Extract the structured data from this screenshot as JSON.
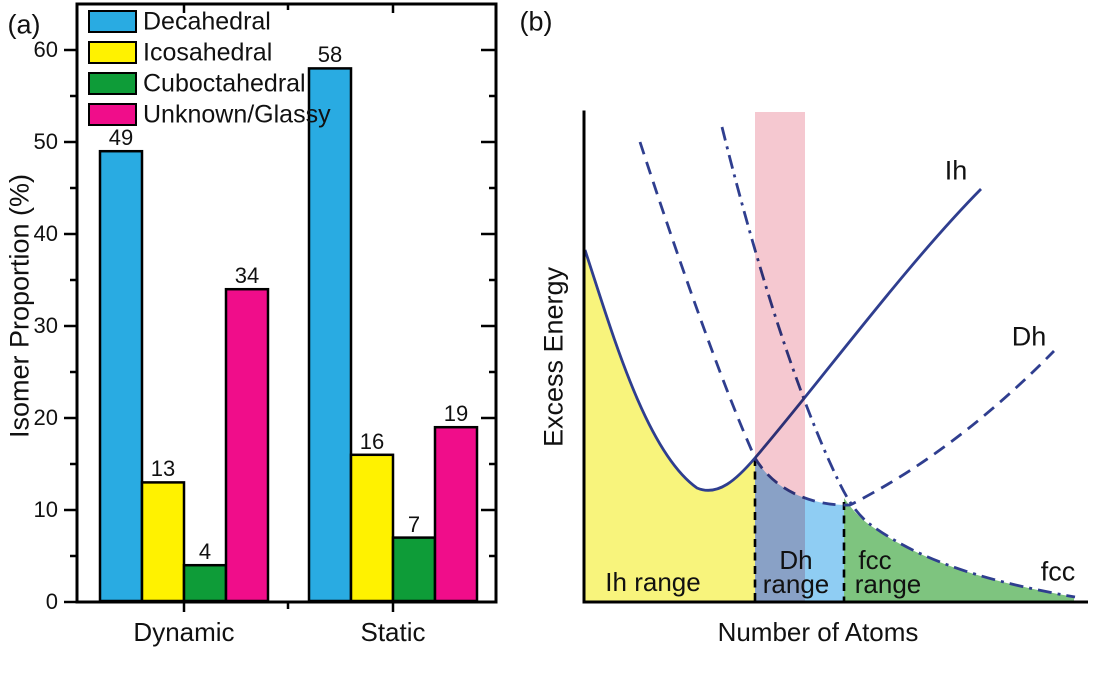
{
  "figure": {
    "panel_a_letter": "(a)",
    "panel_b_letter": "(b)"
  },
  "chart_data": [
    {
      "type": "bar",
      "panel": "a",
      "categories": [
        "Dynamic",
        "Static"
      ],
      "series": [
        {
          "name": "Decahedral",
          "color": "#29ABE2",
          "values": [
            49,
            58
          ]
        },
        {
          "name": "Icosahedral",
          "color": "#FFF200",
          "values": [
            13,
            16
          ]
        },
        {
          "name": "Cuboctahedral",
          "color": "#0E9C38",
          "values": [
            4,
            7
          ]
        },
        {
          "name": "Unknown/Glassy",
          "color": "#F00D8A",
          "values": [
            34,
            19
          ]
        }
      ],
      "ylabel": "Isomer Proportion (%)",
      "ylim": [
        0,
        65
      ],
      "yticks": [
        0,
        10,
        20,
        30,
        40,
        50,
        60
      ],
      "bar_value_labels": true,
      "legend_position": "top-left",
      "grid": false
    },
    {
      "type": "line",
      "panel": "b",
      "xlabel": "Number of Atoms",
      "ylabel": "Excess Energy",
      "axes_quantitative": false,
      "series": [
        {
          "name": "Ih",
          "style": "solid",
          "color": "#2F3E8F",
          "shape": "high at small N, decreases to a minimum, then increases with N"
        },
        {
          "name": "Dh",
          "style": "dashed",
          "color": "#2F3E8F",
          "shape": "decreases steeply, shallow minimum at intermediate N, then increases"
        },
        {
          "name": "fcc",
          "style": "dash-dot",
          "color": "#2F3E8F",
          "shape": "decreases steeply then decays slowly toward zero at large N"
        }
      ],
      "regions": [
        {
          "name": "Ih range",
          "fill": "#F8F47C",
          "extent": "small N, under Ih curve"
        },
        {
          "name": "Dh range",
          "fill": "#8FCDF3",
          "extent": "between Ih/Dh and Dh/fcc crossovers"
        },
        {
          "name": "fcc range",
          "fill": "#7EC47F",
          "extent": "large N, under fcc curve"
        },
        {
          "name": "highlight band",
          "fill": "#F5C8D0",
          "extent": "vertical band at the Ih/Dh crossover"
        }
      ]
    }
  ],
  "panel_b": {
    "label": "(b)",
    "xlabel": "Number of Atoms",
    "ylabel": "Excess Energy",
    "curve_labels": {
      "ih": "Ih",
      "dh": "Dh",
      "fcc": "fcc"
    },
    "region_labels": {
      "ih": "Ih range",
      "dh_line1": "Dh",
      "dh_line2": "range",
      "fcc_line1": "fcc",
      "fcc_line2": "range"
    },
    "colors": {
      "curve": "#2F3E8F",
      "ih_fill": "#F8F47C",
      "dh_fill": "#8FCDF3",
      "fcc_fill": "#7EC47F",
      "highlight_band": "#F5C8D0"
    }
  }
}
